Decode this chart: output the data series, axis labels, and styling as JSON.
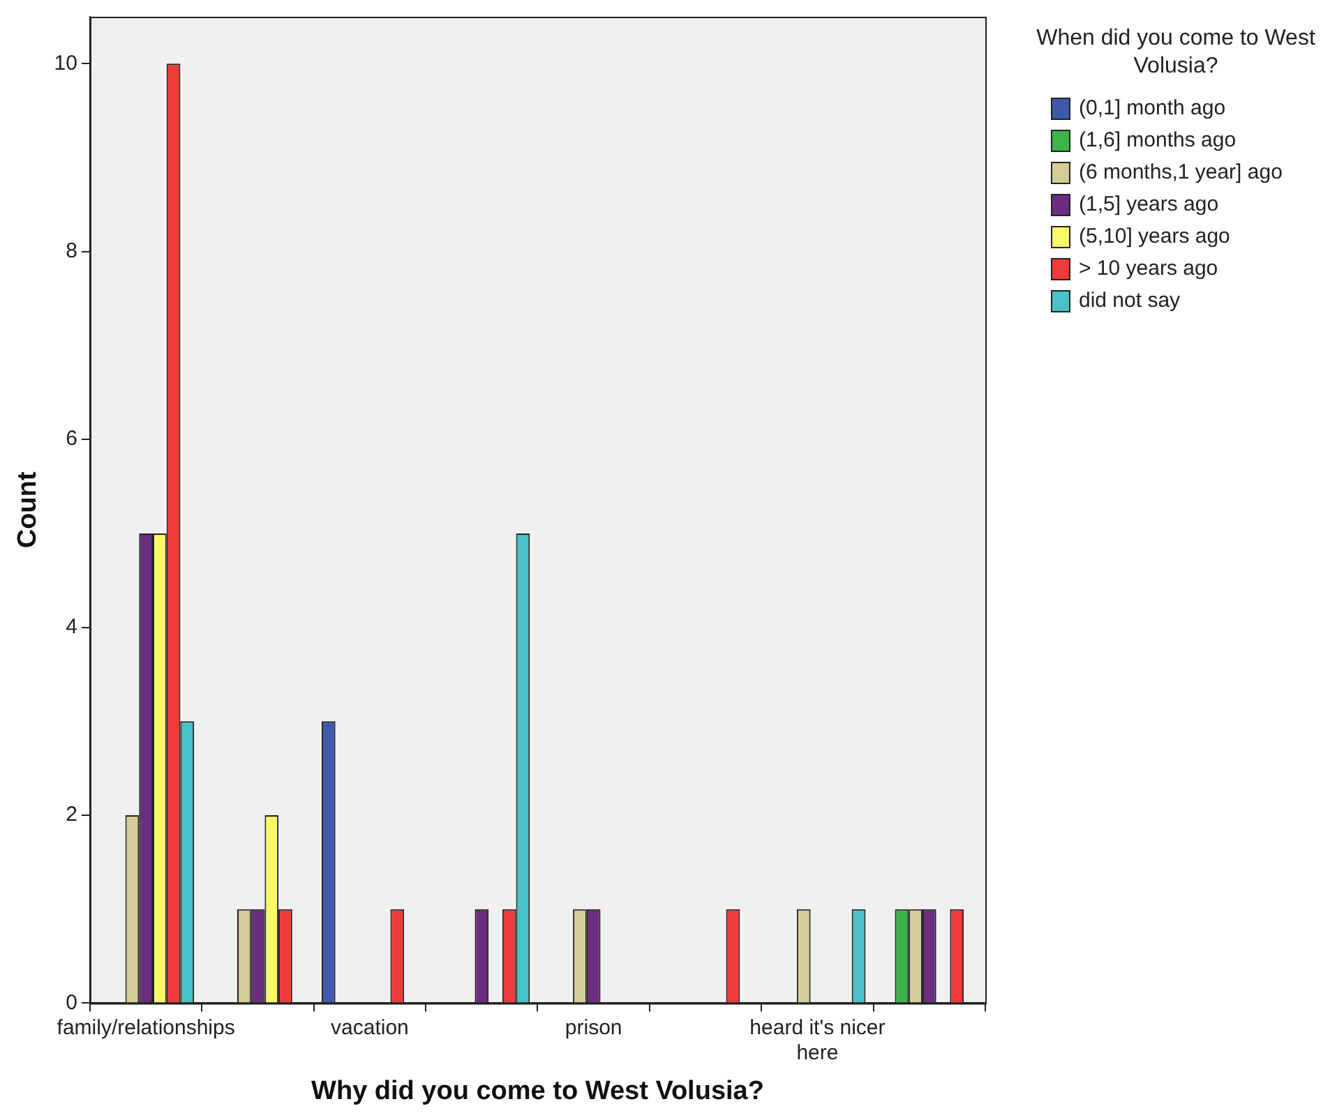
{
  "chart_data": {
    "type": "bar",
    "xlabel": "Why did you come to West Volusia?",
    "ylabel": "Count",
    "legend_title": "When did you come to West Volusia?",
    "legend": "top right",
    "categories": [
      "family/relationships",
      null,
      "vacation",
      null,
      "prison",
      null,
      "heard it's nicer here",
      null
    ],
    "ylim": [
      0,
      10.5
    ],
    "yticks": [
      0,
      2,
      4,
      6,
      8,
      10
    ],
    "series": [
      {
        "name": "(0,1] month ago",
        "color": "#3e58ac",
        "values": [
          null,
          null,
          3,
          null,
          null,
          null,
          null,
          null
        ]
      },
      {
        "name": "(1,6] months ago",
        "color": "#3fb449",
        "values": [
          null,
          null,
          null,
          null,
          null,
          null,
          null,
          1
        ]
      },
      {
        "name": "(6 months,1 year] ago",
        "color": "#d3ce97",
        "values": [
          2,
          1,
          null,
          null,
          1,
          null,
          1,
          1
        ]
      },
      {
        "name": "(1,5] years ago",
        "color": "#6b2d7f",
        "values": [
          5,
          1,
          null,
          1,
          1,
          null,
          null,
          1
        ]
      },
      {
        "name": "(5,10] years ago",
        "color": "#fbf869",
        "values": [
          5,
          2,
          null,
          null,
          null,
          null,
          null,
          null
        ]
      },
      {
        "name": "> 10 years ago",
        "color": "#ef3b39",
        "values": [
          10,
          1,
          1,
          1,
          null,
          1,
          null,
          1
        ]
      },
      {
        "name": "did not say",
        "color": "#48c1c8",
        "values": [
          3,
          null,
          null,
          5,
          null,
          null,
          1,
          null
        ]
      }
    ]
  }
}
